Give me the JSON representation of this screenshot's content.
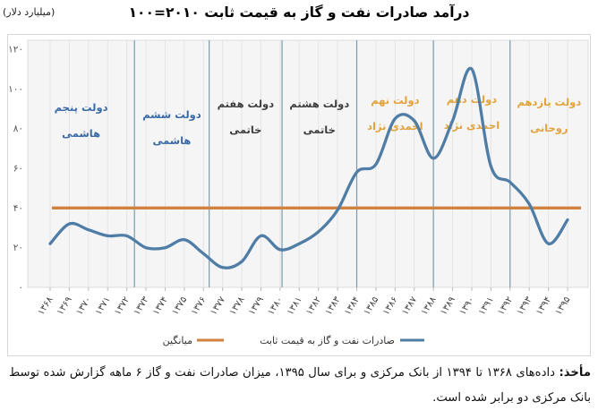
{
  "title": "درآمد صادرات نفت و گاز به قیمت ثابت ۲۰۱۰=۱۰۰",
  "y_unit_label": "(میلیارد دلار)",
  "source_note": {
    "label": "مأخذ:",
    "text": " داده‌های ۱۳۶۸ تا ۱۳۹۴ از بانک مرکزی و برای سال ۱۳۹۵، میزان صادرات نفت و گاز ۶ ماهه گزارش شده توسط بانک مرکزی دو برابر شده است."
  },
  "chart_data": {
    "type": "line",
    "x": [
      "۱۳۶۸",
      "۱۳۶۹",
      "۱۳۷۰",
      "۱۳۷۱",
      "۱۳۷۲",
      "۱۳۷۳",
      "۱۳۷۴",
      "۱۳۷۵",
      "۱۳۷۶",
      "۱۳۷۷",
      "۱۳۷۸",
      "۱۳۷۹",
      "۱۳۸۰",
      "۱۳۸۱",
      "۱۳۸۲",
      "۱۳۸۳",
      "۱۳۸۴",
      "۱۳۸۵",
      "۱۳۸۶",
      "۱۳۸۷",
      "۱۳۸۸",
      "۱۳۸۹",
      "۱۳۹۰",
      "۱۳۹۱",
      "۱۳۹۲",
      "۱۳۹۳",
      "۱۳۹۴",
      "۱۳۹۵"
    ],
    "series": [
      {
        "name": "صادرات نفت و گاز به قیمت ثابت",
        "type": "smooth-line",
        "color": "#4f7da6",
        "values": [
          22,
          32,
          29,
          26,
          26,
          20,
          20,
          24,
          17,
          10,
          13,
          26,
          19,
          22,
          28,
          39,
          58,
          62,
          85,
          84,
          65,
          84,
          110,
          61,
          53,
          42,
          22,
          34
        ]
      },
      {
        "name": "میانگین",
        "type": "horizontal-line",
        "color": "#cf833f",
        "value": 40
      }
    ],
    "ylim": [
      0,
      120
    ],
    "yticks": [
      {
        "value": 0,
        "label": "۰"
      },
      {
        "value": 20,
        "label": "۲۰"
      },
      {
        "value": 40,
        "label": "۴۰"
      },
      {
        "value": 60,
        "label": "۶۰"
      },
      {
        "value": 80,
        "label": "۸۰"
      },
      {
        "value": 100,
        "label": "۱۰۰"
      },
      {
        "value": 120,
        "label": "۱۲۰"
      },
      {
        "value": 140,
        "label": ""
      }
    ],
    "grid": "vertical-yearly",
    "legend_position": "bottom-center",
    "annotations": {
      "boundaries": [
        4.4,
        8.3,
        12.1,
        16,
        20,
        24
      ],
      "governments": [
        {
          "line1": "دولت پنجم",
          "line2": "هاشمی",
          "color": "#3a6aa6"
        },
        {
          "line1": "دولت ششم",
          "line2": "هاشمی",
          "color": "#3a6aa6"
        },
        {
          "line1": "دولت هفتم",
          "line2": "خاتمی",
          "color": "#3d3d3d"
        },
        {
          "line1": "دولت هشتم",
          "line2": "خاتمی",
          "color": "#3d3d3d"
        },
        {
          "line1": "دولت نهم",
          "line2": "احمدی نژاد",
          "color": "#e2a23b"
        },
        {
          "line1": "دولت دهم",
          "line2": "احمدی نژاد",
          "color": "#e2a23b"
        },
        {
          "line1": "دولت یازدهم",
          "line2": "روحانی",
          "color": "#e2a23b"
        }
      ]
    }
  }
}
